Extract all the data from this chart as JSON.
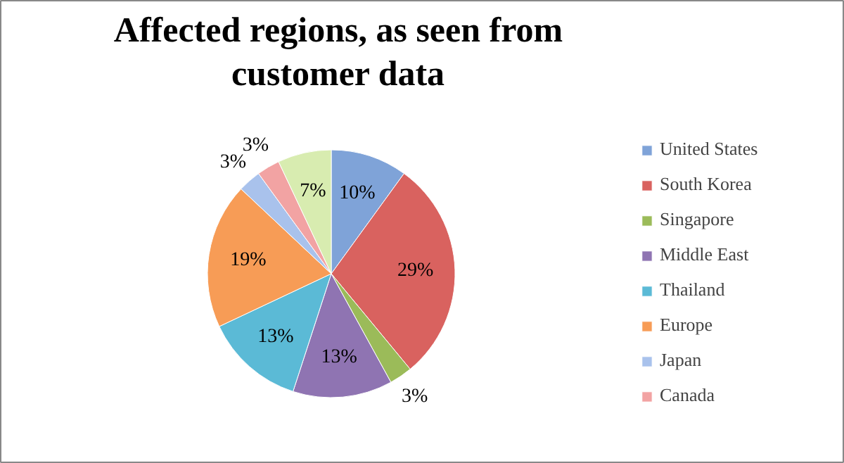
{
  "chart_data": {
    "type": "pie",
    "title": "Affected regions, as seen from\ncustomer data",
    "categories": [
      "United States",
      "South Korea",
      "Singapore",
      "Middle East",
      "Thailand",
      "Europe",
      "Japan",
      "Canada",
      null
    ],
    "values": [
      10,
      29,
      3,
      13,
      13,
      19,
      3,
      3,
      7
    ],
    "colors": [
      "#7fa3d8",
      "#d9625f",
      "#9bbb59",
      "#8f74b2",
      "#5bbad6",
      "#f79c56",
      "#a9c2ec",
      "#f2a3a3",
      "#d8ecb0"
    ],
    "value_labels": [
      "10%",
      "29%",
      "3%",
      "13%",
      "13%",
      "19%",
      "3%",
      "3%",
      "7%"
    ],
    "legend": "right"
  }
}
